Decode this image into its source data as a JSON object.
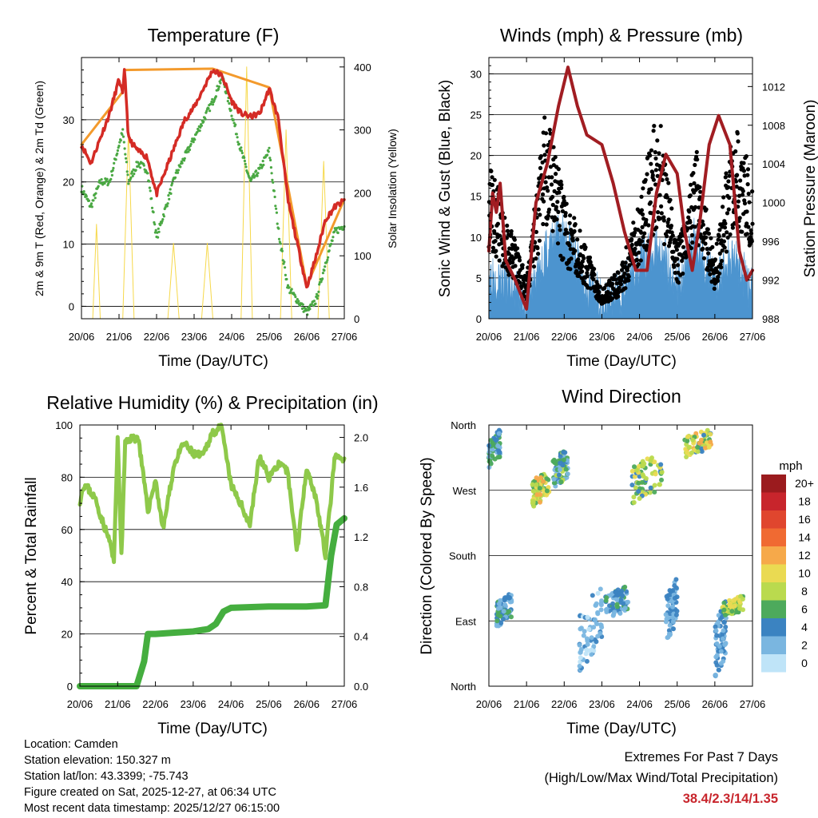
{
  "panels": {
    "temperature": {
      "title": "Temperature (F)",
      "ylabel_left": "2m & 9m T (Red, Orange) & 2m Td (Green)",
      "ylabel_right": "Solar Insolation (Yellow)",
      "xlabel": "Time (Day/UTC)"
    },
    "winds": {
      "title": "Winds (mph) & Pressure (mb)",
      "ylabel_left": "Sonic Wind & Gust (Blue, Black)",
      "ylabel_right": "Station Pressure (Maroon)",
      "xlabel": "Time (Day/UTC)"
    },
    "humidity": {
      "title": "Relative Humidity (%) & Precipitation (in)",
      "ylabel_left": "Percent & Total Rainfall",
      "xlabel": "Time (Day/UTC)"
    },
    "direction": {
      "title": "Wind Direction",
      "ylabel_left": "Direction (Colored By Speed)",
      "xlabel": "Time (Day/UTC)"
    }
  },
  "legend": {
    "title": "mph",
    "labels": [
      "20+",
      "18",
      "16",
      "14",
      "12",
      "10",
      "8",
      "6",
      "4",
      "2",
      "0"
    ],
    "colors": [
      "#9b1b1e",
      "#c8252c",
      "#e0462e",
      "#f06a32",
      "#f6a94a",
      "#eada52",
      "#bada4e",
      "#4daa5c",
      "#3b83c1",
      "#7ab6e0",
      "#bfe4f8"
    ]
  },
  "info": {
    "location": "Location: Camden",
    "elevation": "Station elevation: 150.327 m",
    "latlon": "Station lat/lon: 43.3399; -75.743",
    "created": "Figure created on Sat, 2025-12-27, at 06:34 UTC",
    "recent": "Most recent data timestamp: 2025/12/27 06:15:00"
  },
  "extremes": {
    "line1": "Extremes For Past 7 Days",
    "line2": "(High/Low/Max Wind/Total Precipitation)",
    "values": "38.4/2.3/14/1.35"
  },
  "chart_data": [
    {
      "type": "line",
      "title": "Temperature (F)",
      "xlabel": "Time (Day/UTC)",
      "x_ticks": [
        "20/06",
        "21/06",
        "22/06",
        "23/06",
        "24/06",
        "25/06",
        "26/06",
        "27/06"
      ],
      "xlim": [
        0,
        7
      ],
      "ylim": [
        -2,
        40
      ],
      "yticks": [
        0,
        10,
        20,
        30
      ],
      "ylim_right": [
        0,
        415
      ],
      "yticks_right": [
        0,
        100,
        200,
        300,
        400
      ],
      "series": [
        {
          "name": "2m T",
          "color": "#d42b25",
          "x": [
            0,
            0.25,
            0.5,
            0.75,
            1.0,
            1.1,
            1.15,
            1.25,
            1.5,
            1.75,
            2.0,
            2.25,
            2.5,
            2.75,
            3.0,
            3.25,
            3.5,
            3.75,
            4.0,
            4.25,
            4.5,
            4.75,
            5.0,
            5.25,
            5.5,
            5.75,
            6.0,
            6.25,
            6.5,
            6.75,
            7.0
          ],
          "values": [
            26,
            23,
            27,
            31,
            36.5,
            34,
            38.4,
            27,
            25,
            24,
            18,
            22,
            26,
            30,
            32,
            35,
            38,
            37,
            33,
            31,
            30.5,
            31,
            35,
            30,
            17,
            10,
            3,
            8,
            14,
            16,
            17
          ]
        },
        {
          "name": "9m T",
          "color": "#f39a2c",
          "x": [
            0,
            1.1,
            1.15,
            3.5,
            5.0,
            6.0,
            7.0
          ],
          "values": [
            26,
            34.5,
            38,
            38.2,
            35.2,
            3.3,
            17.2
          ]
        },
        {
          "name": "2m Td",
          "color": "#4aa843",
          "x": [
            0,
            0.25,
            0.5,
            0.75,
            1.0,
            1.1,
            1.25,
            1.5,
            1.75,
            2.0,
            2.25,
            2.5,
            2.75,
            3.0,
            3.25,
            3.5,
            3.75,
            4.0,
            4.25,
            4.5,
            4.75,
            5.0,
            5.25,
            5.5,
            5.75,
            6.0,
            6.25,
            6.5,
            6.75,
            7.0
          ],
          "values": [
            19,
            16,
            20,
            20,
            26,
            28,
            20,
            23,
            22,
            11,
            16,
            21,
            24,
            27,
            30,
            33,
            37,
            31,
            25,
            20,
            22,
            25,
            12,
            3,
            1,
            -1,
            1,
            7,
            12,
            13
          ]
        },
        {
          "name": "Solar Insolation",
          "color": "#f6d84a",
          "axis": "right",
          "x": [
            0,
            0.3,
            0.4,
            0.5,
            1.1,
            1.25,
            1.4,
            1.8,
            2.3,
            2.45,
            2.6,
            3.0,
            3.2,
            3.35,
            3.5,
            4.0,
            4.25,
            4.4,
            4.55,
            5.0,
            5.3,
            5.45,
            5.6,
            6.0,
            6.3,
            6.45,
            6.6,
            7.0
          ],
          "values": [
            0,
            0,
            150,
            0,
            0,
            300,
            0,
            0,
            0,
            120,
            0,
            0,
            0,
            120,
            0,
            0,
            0,
            400,
            0,
            0,
            0,
            300,
            0,
            0,
            0,
            250,
            0,
            0
          ]
        }
      ]
    },
    {
      "type": "line",
      "title": "Winds (mph) & Pressure (mb)",
      "xlabel": "Time (Day/UTC)",
      "x_ticks": [
        "20/06",
        "21/06",
        "22/06",
        "23/06",
        "24/06",
        "25/06",
        "26/06",
        "27/06"
      ],
      "xlim": [
        0,
        7
      ],
      "ylim": [
        0,
        32
      ],
      "yticks": [
        0,
        5,
        10,
        15,
        20,
        25,
        30
      ],
      "ylim_right": [
        988,
        1015
      ],
      "yticks_right": [
        988,
        992,
        996,
        1000,
        1004,
        1008,
        1012
      ],
      "series": [
        {
          "name": "Sonic Wind (Blue)",
          "color": "#4c94cf",
          "x": [
            0,
            0.5,
            1.0,
            1.5,
            2.0,
            2.5,
            3.0,
            3.5,
            4.0,
            4.5,
            5.0,
            5.5,
            6.0,
            6.5,
            7.0
          ],
          "values": [
            6,
            4,
            2,
            8,
            11,
            5,
            2,
            3,
            7,
            9,
            4,
            10,
            4,
            8,
            3
          ]
        },
        {
          "name": "Gust (Black)",
          "color": "#000000",
          "x": [
            0,
            0.5,
            1.0,
            1.5,
            2.0,
            2.5,
            3.0,
            3.5,
            4.0,
            4.5,
            5.0,
            5.5,
            6.0,
            6.5,
            7.0
          ],
          "values": [
            16,
            10,
            4,
            21,
            12,
            8,
            3,
            5,
            12,
            21,
            7,
            17,
            6,
            20,
            14
          ]
        },
        {
          "name": "Station Pressure (Maroon)",
          "color": "#a11d22",
          "axis": "right",
          "x": [
            0,
            0.1,
            0.2,
            0.3,
            0.45,
            0.7,
            1.0,
            1.25,
            1.55,
            1.85,
            2.1,
            2.35,
            2.6,
            3.0,
            3.3,
            3.6,
            3.9,
            4.2,
            4.45,
            4.7,
            5.0,
            5.2,
            5.4,
            5.6,
            5.85,
            6.1,
            6.4,
            6.65,
            6.85,
            7.0
          ],
          "values": [
            995,
            1001,
            999,
            1002,
            994,
            992,
            989,
            1000,
            1004,
            1010,
            1014,
            1010,
            1007,
            1006,
            1002,
            997,
            993,
            993,
            1001,
            1005,
            1003,
            997,
            993,
            998,
            1006,
            1009,
            1006,
            995,
            992,
            993
          ]
        }
      ]
    },
    {
      "type": "line",
      "title": "Relative Humidity (%) & Precipitation (in)",
      "xlabel": "Time (Day/UTC)",
      "x_ticks": [
        "20/06",
        "21/06",
        "22/06",
        "23/06",
        "24/06",
        "25/06",
        "26/06",
        "27/06"
      ],
      "xlim": [
        0,
        7
      ],
      "ylim": [
        0,
        100
      ],
      "yticks": [
        0,
        20,
        40,
        60,
        80,
        100
      ],
      "ylim_right": [
        0,
        2.1
      ],
      "yticks_right": [
        0.0,
        0.4,
        0.8,
        1.2,
        1.6,
        2.0
      ],
      "series": [
        {
          "name": "Relative Humidity",
          "color": "#8ec94a",
          "x": [
            0,
            0.1,
            0.2,
            0.4,
            0.6,
            0.8,
            0.9,
            1.0,
            1.1,
            1.2,
            1.35,
            1.55,
            1.8,
            2.0,
            2.2,
            2.5,
            2.75,
            3.0,
            3.25,
            3.5,
            3.75,
            4.0,
            4.25,
            4.5,
            4.75,
            5.0,
            5.25,
            5.5,
            5.75,
            6.0,
            6.25,
            6.5,
            6.75,
            7.0
          ],
          "values": [
            71,
            77,
            76,
            72,
            63,
            55,
            47,
            95,
            50,
            93,
            95,
            95,
            67,
            79,
            60,
            85,
            93,
            89,
            88,
            97,
            99,
            77,
            70,
            62,
            88,
            80,
            85,
            82,
            52,
            84,
            72,
            50,
            88,
            86
          ]
        },
        {
          "name": "Total Precipitation",
          "color": "#45ae3f",
          "axis": "right",
          "x": [
            0,
            1.5,
            1.7,
            1.8,
            2.0,
            2.5,
            3.0,
            3.4,
            3.6,
            3.8,
            4.0,
            5.0,
            6.0,
            6.5,
            6.65,
            6.8,
            7.0
          ],
          "values": [
            0.0,
            0.0,
            0.2,
            0.42,
            0.42,
            0.43,
            0.44,
            0.46,
            0.5,
            0.6,
            0.63,
            0.64,
            0.64,
            0.65,
            1.05,
            1.3,
            1.35
          ]
        }
      ]
    },
    {
      "type": "scatter",
      "title": "Wind Direction",
      "xlabel": "Time (Day/UTC)",
      "x_ticks": [
        "20/06",
        "21/06",
        "22/06",
        "23/06",
        "24/06",
        "25/06",
        "26/06",
        "27/06"
      ],
      "xlim": [
        0,
        7
      ],
      "ylim": [
        0,
        360
      ],
      "y_ticks": [
        "North",
        "East",
        "South",
        "West",
        "North"
      ],
      "colorbar": "mph",
      "clusters": [
        {
          "x": [
            0.0,
            0.3
          ],
          "dir": [
            300,
            355
          ],
          "speed": [
            2,
            7
          ]
        },
        {
          "x": [
            0.2,
            0.6
          ],
          "dir": [
            80,
            130
          ],
          "speed": [
            1,
            6
          ]
        },
        {
          "x": [
            1.15,
            1.6
          ],
          "dir": [
            245,
            300
          ],
          "speed": [
            4,
            12
          ]
        },
        {
          "x": [
            1.7,
            2.1
          ],
          "dir": [
            270,
            330
          ],
          "speed": [
            2,
            8
          ]
        },
        {
          "x": [
            2.4,
            3.0
          ],
          "dir": [
            20,
            140
          ],
          "speed": [
            0,
            4
          ]
        },
        {
          "x": [
            3.1,
            3.7
          ],
          "dir": [
            90,
            140
          ],
          "speed": [
            1,
            6
          ]
        },
        {
          "x": [
            3.8,
            4.6
          ],
          "dir": [
            250,
            325
          ],
          "speed": [
            3,
            11
          ]
        },
        {
          "x": [
            4.7,
            5.0
          ],
          "dir": [
            60,
            150
          ],
          "speed": [
            1,
            5
          ]
        },
        {
          "x": [
            5.2,
            5.9
          ],
          "dir": [
            315,
            355
          ],
          "speed": [
            4,
            13
          ]
        },
        {
          "x": [
            6.0,
            6.3
          ],
          "dir": [
            10,
            120
          ],
          "speed": [
            1,
            5
          ]
        },
        {
          "x": [
            6.2,
            6.75
          ],
          "dir": [
            95,
            125
          ],
          "speed": [
            5,
            11
          ]
        }
      ]
    }
  ]
}
